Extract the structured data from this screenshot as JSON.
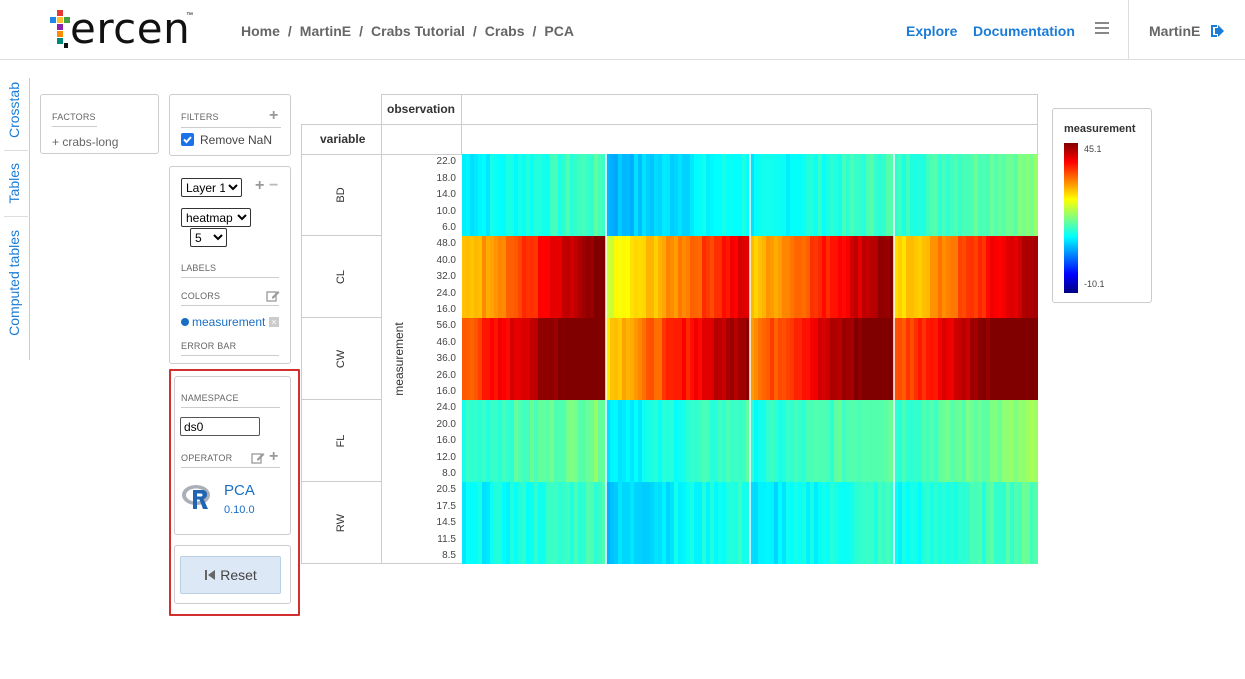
{
  "header": {
    "logo_text": "ercen",
    "logo_tm": "™",
    "breadcrumb": [
      "Home",
      "MartinE",
      "Crabs Tutorial",
      "Crabs",
      "PCA"
    ],
    "breadcrumb_sep": "/",
    "explore": "Explore",
    "documentation": "Documentation",
    "menu_icon": "hamburger-icon",
    "user": "MartinE",
    "logout_icon": "logout-icon"
  },
  "sidetabs": [
    "Crosstab",
    "Tables",
    "Computed tables"
  ],
  "factors": {
    "title": "FACTORS",
    "item": "crabs-long",
    "item_prefix": "+"
  },
  "filters": {
    "title": "FILTERS",
    "checkbox_label": "Remove NaN",
    "checked": true
  },
  "layer": {
    "layer_select": "Layer 1",
    "chart_select": "heatmap",
    "size_select": "5",
    "labels_title": "LABELS",
    "colors_title": "COLORS",
    "color_item": "measurement",
    "errorbar_title": "ERROR BAR"
  },
  "operator": {
    "namespace_title": "NAMESPACE",
    "namespace_value": "ds0",
    "operator_title": "OPERATOR",
    "name": "PCA",
    "version": "0.10.0",
    "reset_label": "Reset",
    "r_icon": "r-logo-icon"
  },
  "crosstab": {
    "col_header": "observation",
    "row_header": "variable",
    "y_axis_label": "measurement",
    "rows": [
      {
        "name": "BD",
        "ticks": [
          "22.0",
          "18.0",
          "14.0",
          "10.0",
          "6.0"
        ]
      },
      {
        "name": "CL",
        "ticks": [
          "48.0",
          "40.0",
          "32.0",
          "24.0",
          "16.0"
        ]
      },
      {
        "name": "CW",
        "ticks": [
          "56.0",
          "46.0",
          "36.0",
          "26.0",
          "16.0"
        ]
      },
      {
        "name": "FL",
        "ticks": [
          "24.0",
          "20.0",
          "16.0",
          "12.0",
          "8.0"
        ]
      },
      {
        "name": "RW",
        "ticks": [
          "20.5",
          "17.5",
          "14.5",
          "11.5",
          "8.5"
        ]
      }
    ]
  },
  "legend": {
    "title": "measurement",
    "max": "45.1",
    "min": "-10.1"
  },
  "chart_data": {
    "type": "heatmap",
    "title": "",
    "colorbar_label": "measurement",
    "color_range": [
      -10.1,
      45.1
    ],
    "rows": [
      "BD",
      "CL",
      "CW",
      "FL",
      "RW"
    ],
    "column_groups": 4,
    "approx_row_mean_values": [
      [
        12,
        9,
        12,
        15
      ],
      [
        36,
        31,
        36,
        34
      ],
      [
        42,
        36,
        40,
        42
      ],
      [
        15,
        12,
        14,
        16
      ],
      [
        12,
        10,
        11,
        13
      ]
    ]
  }
}
